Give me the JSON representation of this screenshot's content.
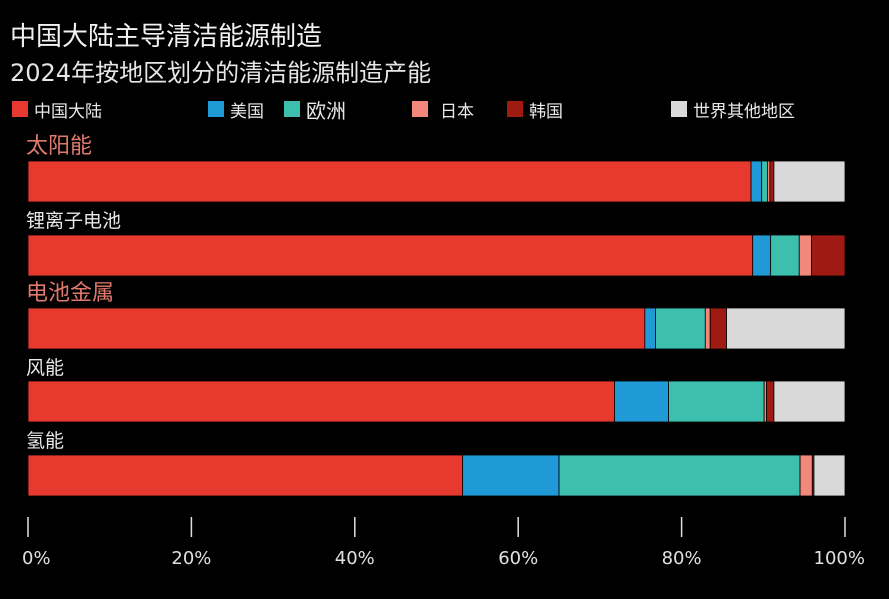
{
  "title": "中国大陆主导清洁能源制造",
  "subtitle": "2024年按地区划分的清洁能源制造产能",
  "colors": {
    "china": "#e8392e",
    "us": "#1f9ad6",
    "europe": "#3dbfae",
    "japan": "#f2877b",
    "korea": "#9e1a12",
    "rest": "#d9d9d9",
    "category_highlight": "#e07a6e",
    "category_normal": "#e8e8e8",
    "axis": "#e0e0e0"
  },
  "chart_data": {
    "type": "bar",
    "orientation": "horizontal",
    "stacked": true,
    "title": "中国大陆主导清洁能源制造",
    "subtitle": "2024年按地区划分的清洁能源制造产能",
    "xlim": [
      0,
      100
    ],
    "x_ticks": [
      "0%",
      "20%",
      "40%",
      "60%",
      "80%",
      "100%"
    ],
    "grid": false,
    "legend_position": "top",
    "categories": [
      "太阳能",
      "锂离子电池",
      "电池金属",
      "风能",
      "氢能"
    ],
    "category_styles": [
      "highlight",
      "normal",
      "highlight",
      "normal",
      "normal"
    ],
    "series": [
      {
        "name": "中国大陆",
        "key": "china",
        "values": [
          88.5,
          88.7,
          75.5,
          71.8,
          53.2
        ]
      },
      {
        "name": "美国",
        "key": "us",
        "values": [
          1.3,
          2.2,
          1.3,
          6.6,
          11.8
        ]
      },
      {
        "name": "欧洲",
        "key": "europe",
        "values": [
          0.7,
          3.5,
          6.1,
          11.7,
          29.5
        ]
      },
      {
        "name": "日本",
        "key": "japan",
        "values": [
          0.3,
          1.5,
          0.6,
          0.3,
          1.5
        ]
      },
      {
        "name": "韩国",
        "key": "korea",
        "values": [
          0.5,
          4.1,
          2.0,
          0.9,
          0.2
        ]
      },
      {
        "name": "世界其他地区",
        "key": "rest",
        "values": [
          8.7,
          0.0,
          14.5,
          8.7,
          3.8
        ]
      }
    ]
  }
}
